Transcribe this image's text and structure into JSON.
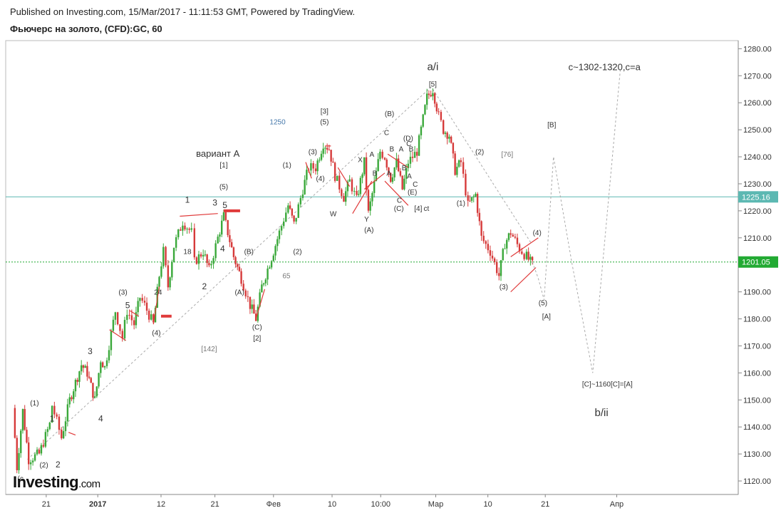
{
  "header": {
    "published": "Published on Investing.com, 15/Mar/2017 - 11:11:53 GMT, Powered by TradingView.",
    "instrument": "Фьючерс на золото, (CFD):GC, 60"
  },
  "logo": {
    "brand": "Investing",
    "suffix": ".com"
  },
  "colors": {
    "up": "#3aa83a",
    "down": "#d63a3a",
    "wave": "#e03a3a",
    "projection": "#aaaaaa",
    "h_teal": "#5cb8b2",
    "h_green": "#22aa33",
    "axis_text": "#333333"
  },
  "chart_data": {
    "type": "candlestick",
    "title": "Фьючерс на золото, (CFD):GC, 60",
    "ylim": [
      1115,
      1283
    ],
    "y_ticks": [
      "1120.00",
      "1130.00",
      "1140.00",
      "1150.00",
      "1160.00",
      "1170.00",
      "1180.00",
      "1190.00",
      "1200.00",
      "1210.00",
      "1220.00",
      "1230.00",
      "1240.00",
      "1250.00",
      "1260.00",
      "1270.00",
      "1280.00"
    ],
    "x_ticks": [
      "21",
      "2017",
      "12",
      "21",
      "Фев",
      "10",
      "10:00",
      "Мар",
      "10",
      "21",
      "Апр"
    ],
    "x_tick_idx": [
      0.12,
      1.0,
      2.08,
      3.0,
      4.0,
      5.0,
      5.83,
      6.77,
      7.66,
      8.64,
      9.86
    ],
    "price_labels": [
      {
        "value": 1225.16,
        "text": "1225.16",
        "color": "teal"
      },
      {
        "value": 1201.05,
        "text": "1201.05",
        "color": "green"
      }
    ],
    "price_path": [
      [
        -0.45,
        1147
      ],
      [
        -0.38,
        1125
      ],
      [
        -0.28,
        1146
      ],
      [
        -0.18,
        1128
      ],
      [
        0.0,
        1130
      ],
      [
        0.18,
        1141
      ],
      [
        0.22,
        1148
      ],
      [
        0.38,
        1136
      ],
      [
        0.52,
        1150
      ],
      [
        0.72,
        1163
      ],
      [
        0.82,
        1160
      ],
      [
        0.95,
        1150
      ],
      [
        1.05,
        1165
      ],
      [
        1.12,
        1162
      ],
      [
        1.3,
        1183
      ],
      [
        1.42,
        1173
      ],
      [
        1.5,
        1183
      ],
      [
        1.62,
        1178
      ],
      [
        1.72,
        1188
      ],
      [
        1.8,
        1185
      ],
      [
        1.95,
        1178
      ],
      [
        2.05,
        1196
      ],
      [
        2.12,
        1205
      ],
      [
        2.2,
        1192
      ],
      [
        2.3,
        1207
      ],
      [
        2.45,
        1216
      ],
      [
        2.6,
        1212
      ],
      [
        2.65,
        1201
      ],
      [
        2.8,
        1205
      ],
      [
        2.9,
        1198
      ],
      [
        3.05,
        1210
      ],
      [
        3.15,
        1218
      ],
      [
        3.22,
        1212
      ],
      [
        3.32,
        1203
      ],
      [
        3.45,
        1195
      ],
      [
        3.6,
        1185
      ],
      [
        3.7,
        1180
      ],
      [
        3.8,
        1192
      ],
      [
        4.0,
        1205
      ],
      [
        4.1,
        1212
      ],
      [
        4.25,
        1222
      ],
      [
        4.35,
        1215
      ],
      [
        4.5,
        1228
      ],
      [
        4.6,
        1236
      ],
      [
        4.72,
        1236
      ],
      [
        4.85,
        1245
      ],
      [
        4.95,
        1243
      ],
      [
        5.05,
        1233
      ],
      [
        5.2,
        1225
      ],
      [
        5.3,
        1231
      ],
      [
        5.42,
        1224
      ],
      [
        5.55,
        1238
      ],
      [
        5.62,
        1219
      ],
      [
        5.72,
        1230
      ],
      [
        5.82,
        1242
      ],
      [
        5.9,
        1240
      ],
      [
        6.0,
        1232
      ],
      [
        6.1,
        1238
      ],
      [
        6.2,
        1228
      ],
      [
        6.3,
        1238
      ],
      [
        6.45,
        1242
      ],
      [
        6.52,
        1250
      ],
      [
        6.62,
        1262
      ],
      [
        6.72,
        1265
      ],
      [
        6.82,
        1255
      ],
      [
        6.9,
        1250
      ],
      [
        7.0,
        1248
      ],
      [
        7.1,
        1235
      ],
      [
        7.2,
        1238
      ],
      [
        7.32,
        1222
      ],
      [
        7.45,
        1226
      ],
      [
        7.55,
        1210
      ],
      [
        7.7,
        1205
      ],
      [
        7.85,
        1196
      ],
      [
        7.95,
        1208
      ],
      [
        8.05,
        1212
      ],
      [
        8.2,
        1206
      ],
      [
        8.32,
        1203
      ],
      [
        8.42,
        1200
      ]
    ],
    "projection": [
      [
        8.42,
        1201
      ],
      [
        8.52,
        1195
      ],
      [
        8.62,
        1187
      ],
      [
        8.78,
        1240
      ],
      [
        9.1,
        1200
      ],
      [
        9.45,
        1160
      ],
      [
        9.92,
        1272
      ]
    ],
    "trendlines": [
      {
        "from": [
          -0.2,
          1128
        ],
        "to": [
          6.7,
          1266
        ],
        "color": "gray",
        "dashed": true
      },
      {
        "from": [
          6.72,
          1265
        ],
        "to": [
          8.4,
          1208
        ],
        "color": "gray",
        "dashed": true
      }
    ],
    "red_lines": [
      [
        [
          1.2,
          1176
        ],
        [
          1.48,
          1172
        ]
      ],
      [
        [
          1.55,
          1183
        ],
        [
          1.7,
          1181
        ]
      ],
      [
        [
          2.4,
          1218
        ],
        [
          3.05,
          1219
        ]
      ],
      [
        [
          1.95,
          1178
        ],
        [
          2.05,
          1192
        ]
      ],
      [
        [
          3.7,
          1180
        ],
        [
          3.85,
          1191
        ]
      ],
      [
        [
          4.55,
          1238
        ],
        [
          4.65,
          1232
        ]
      ],
      [
        [
          4.88,
          1244
        ],
        [
          4.98,
          1244
        ]
      ],
      [
        [
          5.1,
          1236
        ],
        [
          5.3,
          1229
        ]
      ],
      [
        [
          5.35,
          1219
        ],
        [
          5.68,
          1231
        ]
      ],
      [
        [
          5.55,
          1228
        ],
        [
          5.9,
          1234
        ]
      ],
      [
        [
          5.9,
          1231
        ],
        [
          6.3,
          1222
        ]
      ],
      [
        [
          5.95,
          1241
        ],
        [
          6.3,
          1236
        ]
      ],
      [
        [
          8.05,
          1203
        ],
        [
          8.52,
          1210
        ]
      ],
      [
        [
          8.05,
          1190
        ],
        [
          8.48,
          1199
        ]
      ],
      [
        [
          0.5,
          1138
        ],
        [
          0.62,
          1137
        ]
      ]
    ],
    "red_markers": [
      {
        "at": [
          3.15,
          1220
        ],
        "len": 0.28
      },
      {
        "at": [
          2.08,
          1181
        ],
        "len": 0.18
      }
    ],
    "wave_labels": [
      {
        "t": "(1)",
        "x": -0.08,
        "y": 1148
      },
      {
        "t": "1",
        "x": 0.22,
        "y": 1142
      },
      {
        "t": "(2)",
        "x": 0.08,
        "y": 1125
      },
      {
        "t": "2",
        "x": 0.32,
        "y": 1125
      },
      {
        "t": "(c",
        "x": -0.32,
        "y": 1120
      },
      {
        "t": "3",
        "x": 0.87,
        "y": 1167
      },
      {
        "t": "4",
        "x": 1.05,
        "y": 1142
      },
      {
        "t": "(3)",
        "x": 1.43,
        "y": 1189
      },
      {
        "t": "5",
        "x": 1.51,
        "y": 1184
      },
      {
        "t": "(4)",
        "x": 2.0,
        "y": 1174
      },
      {
        "t": "24",
        "x": 2.03,
        "y": 1189
      },
      {
        "t": "18",
        "x": 2.53,
        "y": 1204
      },
      {
        "t": "1",
        "x": 2.53,
        "y": 1223
      },
      {
        "t": "2",
        "x": 2.82,
        "y": 1191
      },
      {
        "t": "3",
        "x": 3.0,
        "y": 1222
      },
      {
        "t": "4",
        "x": 3.13,
        "y": 1205
      },
      {
        "t": "5",
        "x": 3.17,
        "y": 1221
      },
      {
        "t": "[1]",
        "x": 3.15,
        "y": 1236
      },
      {
        "t": "(5)",
        "x": 3.15,
        "y": 1228
      },
      {
        "t": "вариант А",
        "x": 3.05,
        "y": 1240
      },
      {
        "t": "(B)",
        "x": 3.58,
        "y": 1204
      },
      {
        "t": "(A)",
        "x": 3.42,
        "y": 1189
      },
      {
        "t": "(C)",
        "x": 3.72,
        "y": 1176
      },
      {
        "t": "[2]",
        "x": 3.72,
        "y": 1172
      },
      {
        "t": "65",
        "x": 4.22,
        "y": 1195
      },
      {
        "t": "[142]",
        "x": 2.9,
        "y": 1168
      },
      {
        "t": "1250",
        "x": 4.07,
        "y": 1252
      },
      {
        "t": "(1)",
        "x": 4.23,
        "y": 1236
      },
      {
        "t": "(2)",
        "x": 4.41,
        "y": 1204
      },
      {
        "t": "(3)",
        "x": 4.67,
        "y": 1241
      },
      {
        "t": "[3]",
        "x": 4.87,
        "y": 1256
      },
      {
        "t": "(5)",
        "x": 4.87,
        "y": 1252
      },
      {
        "t": "(4)",
        "x": 4.8,
        "y": 1231
      },
      {
        "t": "W",
        "x": 5.02,
        "y": 1218
      },
      {
        "t": "X",
        "x": 5.48,
        "y": 1238
      },
      {
        "t": "Y",
        "x": 5.59,
        "y": 1216
      },
      {
        "t": "(A)",
        "x": 5.63,
        "y": 1212
      },
      {
        "t": "A",
        "x": 5.68,
        "y": 1240
      },
      {
        "t": "B",
        "x": 5.73,
        "y": 1233
      },
      {
        "t": "C",
        "x": 5.93,
        "y": 1248
      },
      {
        "t": "B",
        "x": 6.02,
        "y": 1242
      },
      {
        "t": "(B)",
        "x": 5.98,
        "y": 1255
      },
      {
        "t": "A",
        "x": 5.97,
        "y": 1233
      },
      {
        "t": "A",
        "x": 6.18,
        "y": 1242
      },
      {
        "t": "B",
        "x": 6.23,
        "y": 1235
      },
      {
        "t": "(D)",
        "x": 6.3,
        "y": 1246
      },
      {
        "t": "C",
        "x": 6.31,
        "y": 1244
      },
      {
        "t": "B",
        "x": 6.35,
        "y": 1242
      },
      {
        "t": "A",
        "x": 6.32,
        "y": 1232
      },
      {
        "t": "C",
        "x": 6.42,
        "y": 1229
      },
      {
        "t": "(E)",
        "x": 6.37,
        "y": 1226
      },
      {
        "t": "C",
        "x": 6.15,
        "y": 1223
      },
      {
        "t": "(C)",
        "x": 6.14,
        "y": 1220
      },
      {
        "t": "[4]",
        "x": 6.47,
        "y": 1220
      },
      {
        "t": "ct",
        "x": 6.61,
        "y": 1220
      },
      {
        "t": "a/i",
        "x": 6.72,
        "y": 1272
      },
      {
        "t": "[5]",
        "x": 6.72,
        "y": 1266
      },
      {
        "t": "(2)",
        "x": 7.52,
        "y": 1241
      },
      {
        "t": "(1)",
        "x": 7.2,
        "y": 1222
      },
      {
        "t": "[76]",
        "x": 7.99,
        "y": 1240
      },
      {
        "t": "(4)",
        "x": 8.5,
        "y": 1211
      },
      {
        "t": "(3)",
        "x": 7.93,
        "y": 1191
      },
      {
        "t": "(5)",
        "x": 8.6,
        "y": 1185
      },
      {
        "t": "[A]",
        "x": 8.66,
        "y": 1180
      },
      {
        "t": "[B]",
        "x": 8.75,
        "y": 1251
      },
      {
        "t": "c~1302-1320,c=a",
        "x": 9.65,
        "y": 1272
      },
      {
        "t": "[C]~1160[C]=[A]",
        "x": 9.7,
        "y": 1155
      },
      {
        "t": "b/ii",
        "x": 9.6,
        "y": 1144
      }
    ]
  }
}
